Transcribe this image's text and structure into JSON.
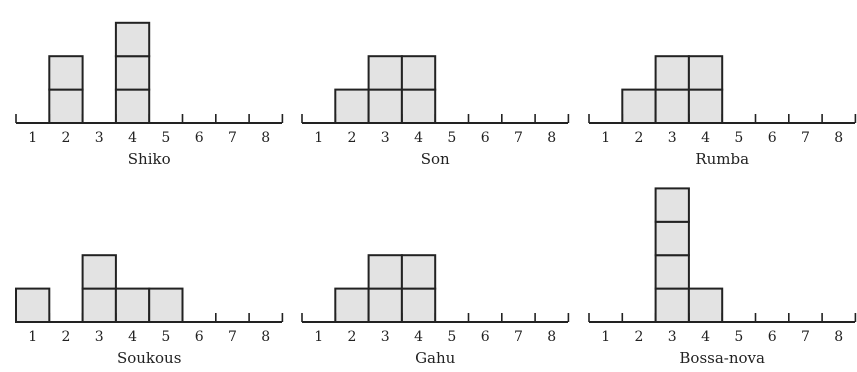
{
  "chart_data": [
    {
      "type": "bar",
      "title": "Shiko",
      "categories": [
        "1",
        "2",
        "3",
        "4",
        "5",
        "6",
        "7",
        "8"
      ],
      "values": [
        0,
        2,
        0,
        3,
        0,
        0,
        0,
        0
      ],
      "ylim": [
        0,
        4
      ]
    },
    {
      "type": "bar",
      "title": "Son",
      "categories": [
        "1",
        "2",
        "3",
        "4",
        "5",
        "6",
        "7",
        "8"
      ],
      "values": [
        0,
        1,
        2,
        2,
        0,
        0,
        0,
        0
      ],
      "ylim": [
        0,
        4
      ]
    },
    {
      "type": "bar",
      "title": "Rumba",
      "categories": [
        "1",
        "2",
        "3",
        "4",
        "5",
        "6",
        "7",
        "8"
      ],
      "values": [
        0,
        1,
        2,
        2,
        0,
        0,
        0,
        0
      ],
      "ylim": [
        0,
        4
      ]
    },
    {
      "type": "bar",
      "title": "Soukous",
      "categories": [
        "1",
        "2",
        "3",
        "4",
        "5",
        "6",
        "7",
        "8"
      ],
      "values": [
        1,
        0,
        2,
        1,
        1,
        0,
        0,
        0
      ],
      "ylim": [
        0,
        4
      ]
    },
    {
      "type": "bar",
      "title": "Gahu",
      "categories": [
        "1",
        "2",
        "3",
        "4",
        "5",
        "6",
        "7",
        "8"
      ],
      "values": [
        0,
        1,
        2,
        2,
        0,
        0,
        0,
        0
      ],
      "ylim": [
        0,
        4
      ]
    },
    {
      "type": "bar",
      "title": "Bossa-nova",
      "categories": [
        "1",
        "2",
        "3",
        "4",
        "5",
        "6",
        "7",
        "8"
      ],
      "values": [
        0,
        0,
        4,
        1,
        0,
        0,
        0,
        0
      ],
      "ylim": [
        0,
        4
      ]
    }
  ],
  "colors": {
    "bar_fill": "#e3e3e3",
    "stroke": "#222222"
  }
}
